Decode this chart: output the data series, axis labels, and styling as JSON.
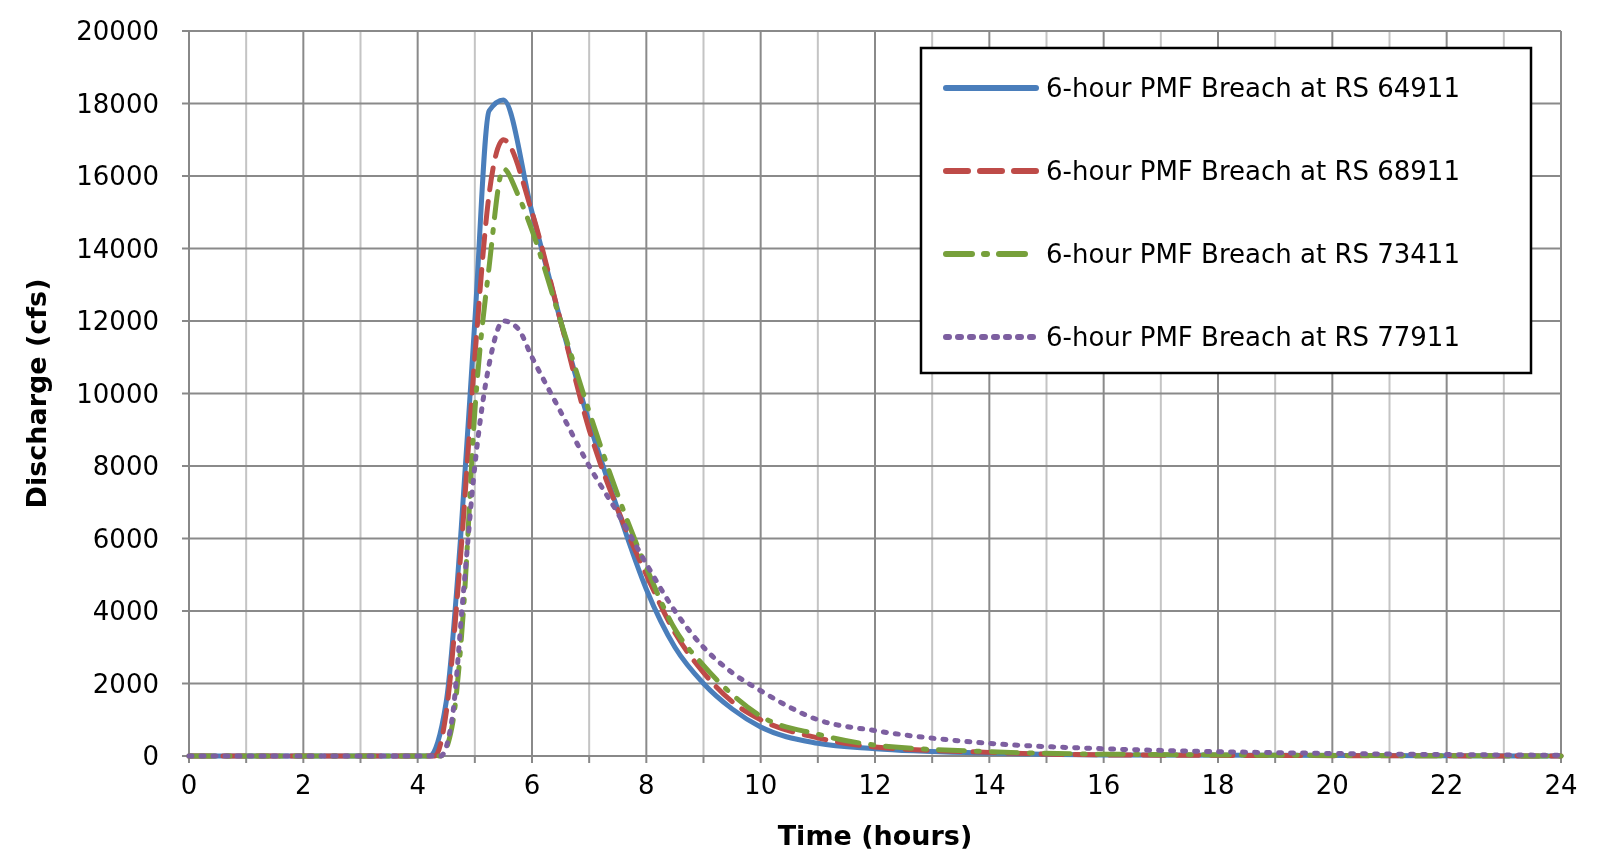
{
  "chart_data": {
    "type": "line",
    "xlabel": "Time (hours)",
    "ylabel": "Discharge (cfs)",
    "xlim": [
      0,
      24
    ],
    "ylim": [
      0,
      20000
    ],
    "xticks": [
      0,
      {
        "value": 1,
        "label": null
      },
      2,
      {
        "value": 3,
        "label": null
      },
      4,
      {
        "value": 5,
        "label": null
      },
      6,
      {
        "value": 7,
        "label": null
      },
      8,
      {
        "value": 9,
        "label": null
      },
      10,
      {
        "value": 11,
        "label": null
      },
      12,
      {
        "value": 13,
        "label": null
      },
      14,
      {
        "value": 15,
        "label": null
      },
      16,
      {
        "value": 17,
        "label": null
      },
      18,
      {
        "value": 19,
        "label": null
      },
      20,
      {
        "value": 21,
        "label": null
      },
      22,
      {
        "value": 23,
        "label": null
      },
      24
    ],
    "yticks": [
      0,
      2000,
      4000,
      6000,
      8000,
      10000,
      12000,
      14000,
      16000,
      18000,
      20000
    ],
    "grid": true,
    "legend": "top right",
    "series": [
      {
        "name": "6-hour PMF Breach at RS 64911",
        "color": "#4a7ebb",
        "line_style": "solid",
        "x": [
          0,
          4.2,
          4.5,
          4.75,
          5,
          5.25,
          5.5,
          6,
          6.5,
          7,
          7.5,
          8,
          8.5,
          9,
          9.5,
          10,
          11,
          12,
          14,
          16,
          24
        ],
        "values": [
          0,
          0,
          1500,
          6000,
          12000,
          17800,
          18100,
          15000,
          12000,
          9200,
          6800,
          4600,
          3000,
          2000,
          1300,
          800,
          350,
          200,
          80,
          30,
          0
        ]
      },
      {
        "name": "6-hour PMF Breach at RS 68911",
        "color": "#be4b48",
        "line_style": "dashed",
        "x": [
          0,
          4.3,
          4.5,
          4.75,
          5,
          5.25,
          5.5,
          6,
          6.5,
          7,
          7.5,
          8,
          8.5,
          9,
          9.5,
          10,
          11,
          12,
          14,
          16,
          24
        ],
        "values": [
          0,
          0,
          1200,
          5500,
          11000,
          15500,
          17000,
          15000,
          12000,
          9000,
          6800,
          5000,
          3400,
          2300,
          1500,
          1000,
          500,
          250,
          100,
          30,
          0
        ]
      },
      {
        "name": "6-hour PMF Breach at RS 73411",
        "color": "#77a03b",
        "line_style": "dashdot",
        "x": [
          0,
          4.4,
          4.6,
          4.8,
          5,
          5.25,
          5.5,
          5.75,
          6,
          6.5,
          7,
          7.5,
          8,
          8.5,
          9,
          9.5,
          10,
          11,
          12,
          14,
          16,
          24
        ],
        "values": [
          0,
          0,
          800,
          4000,
          9500,
          13500,
          16200,
          15500,
          14500,
          12000,
          9500,
          7200,
          5200,
          3500,
          2500,
          1700,
          1100,
          600,
          300,
          120,
          50,
          0
        ]
      },
      {
        "name": "6-hour PMF Breach at RS 77911",
        "color": "#7d5fa0",
        "line_style": "dotted",
        "x": [
          0,
          4.4,
          4.6,
          4.8,
          5,
          5.25,
          5.5,
          5.75,
          6,
          6.5,
          7,
          7.5,
          8,
          8.5,
          9,
          9.5,
          10,
          11,
          12,
          14,
          16,
          18,
          20,
          24
        ],
        "values": [
          0,
          0,
          1000,
          4500,
          8000,
          10800,
          12000,
          11800,
          11000,
          9500,
          8000,
          6700,
          5300,
          4000,
          3000,
          2300,
          1800,
          1000,
          700,
          350,
          200,
          120,
          70,
          20
        ]
      }
    ]
  }
}
